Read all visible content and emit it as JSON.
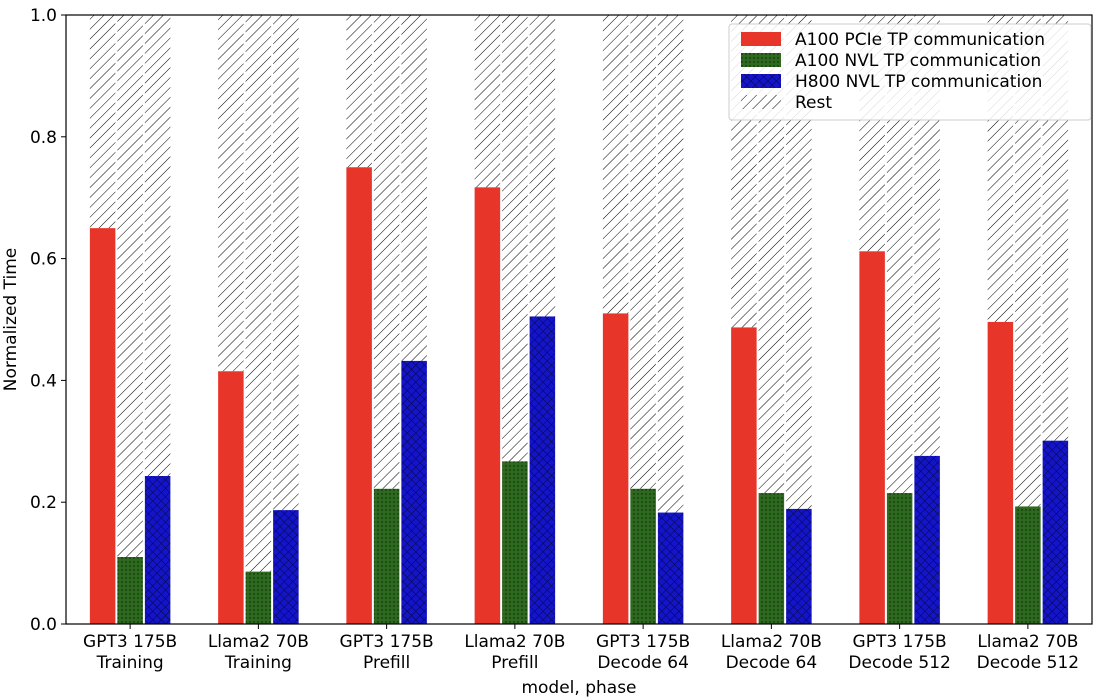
{
  "chart_data": {
    "type": "bar",
    "title": "",
    "xlabel": "model, phase",
    "ylabel": "Normalized Time",
    "ylim": [
      0,
      1.0
    ],
    "yticks": [
      "0.0",
      "0.2",
      "0.4",
      "0.6",
      "0.8",
      "1.0"
    ],
    "categories": [
      [
        "GPT3 175B",
        "Training"
      ],
      [
        "Llama2 70B",
        "Training"
      ],
      [
        "GPT3 175B",
        "Prefill"
      ],
      [
        "Llama2 70B",
        "Prefill"
      ],
      [
        "GPT3 175B",
        "Decode 64"
      ],
      [
        "Llama2 70B",
        "Decode 64"
      ],
      [
        "GPT3 175B",
        "Decode 512"
      ],
      [
        "Llama2 70B",
        "Decode 512"
      ]
    ],
    "series": [
      {
        "name": "A100 PCIe TP communication",
        "color": "#e8352a",
        "pattern": "solid",
        "values": [
          0.65,
          0.415,
          0.75,
          0.717,
          0.51,
          0.487,
          0.612,
          0.496
        ]
      },
      {
        "name": "A100 NVL TP communication",
        "color": "#2d6a1f",
        "pattern": "dots",
        "values": [
          0.11,
          0.086,
          0.222,
          0.267,
          0.222,
          0.215,
          0.215,
          0.193
        ]
      },
      {
        "name": "H800 NVL TP communication",
        "color": "#1414c8",
        "pattern": "crosshatch",
        "values": [
          0.243,
          0.187,
          0.432,
          0.505,
          0.183,
          0.189,
          0.276,
          0.301
        ]
      }
    ],
    "rest": {
      "name": "Rest",
      "pattern": "diagonal",
      "stack_to": 1.0
    },
    "legend_position": "top-right",
    "grid": false
  }
}
